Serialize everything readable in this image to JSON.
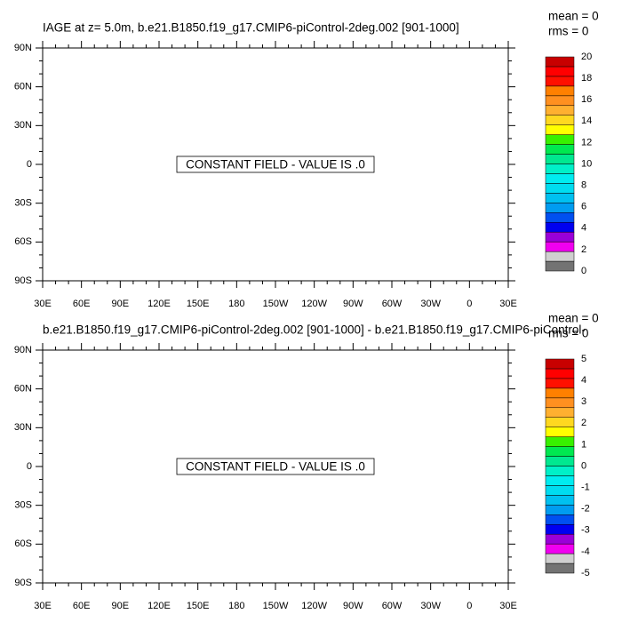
{
  "colorbar_colors": [
    "#737373",
    "#cfcfcf",
    "#f000f0",
    "#9a00d8",
    "#0000f0",
    "#0050f0",
    "#009cf0",
    "#00c0f0",
    "#00dcf0",
    "#00ecf0",
    "#00f0c8",
    "#00e890",
    "#00e850",
    "#38f000",
    "#ffff00",
    "#ffd820",
    "#ffb030",
    "#ff9020",
    "#ff8000",
    "#ff1000",
    "#ff0000",
    "#c80000"
  ],
  "panels": [
    {
      "title": "IAGE at z=   5.0m, b.e21.B1850.f19_g17.CMIP6-piControl-2deg.002 [901-1000]",
      "stats": [
        "mean = 0",
        "rms = 0"
      ],
      "message": "CONSTANT FIELD - VALUE IS .0",
      "x_labels": [
        "30E",
        "60E",
        "90E",
        "120E",
        "150E",
        "180",
        "150W",
        "120W",
        "90W",
        "60W",
        "30W",
        "0",
        "30E"
      ],
      "y_labels": [
        "90N",
        "60N",
        "30N",
        "0",
        "30S",
        "60S",
        "90S"
      ],
      "colorbar_labels": [
        0,
        2,
        4,
        6,
        8,
        10,
        12,
        14,
        16,
        18,
        20
      ]
    },
    {
      "title": "b.e21.B1850.f19_g17.CMIP6-piControl-2deg.002 [901-1000] - b.e21.B1850.f19_g17.CMIP6-piControl-",
      "stats": [
        "mean = 0",
        "rms = 0"
      ],
      "message": "CONSTANT FIELD - VALUE IS .0",
      "x_labels": [
        "30E",
        "60E",
        "90E",
        "120E",
        "150E",
        "180",
        "150W",
        "120W",
        "90W",
        "60W",
        "30W",
        "0",
        "30E"
      ],
      "y_labels": [
        "90N",
        "60N",
        "30N",
        "0",
        "30S",
        "60S",
        "90S"
      ],
      "colorbar_labels": [
        -5,
        -4,
        -3,
        -2,
        -1,
        0,
        1,
        2,
        3,
        4,
        5
      ]
    }
  ]
}
